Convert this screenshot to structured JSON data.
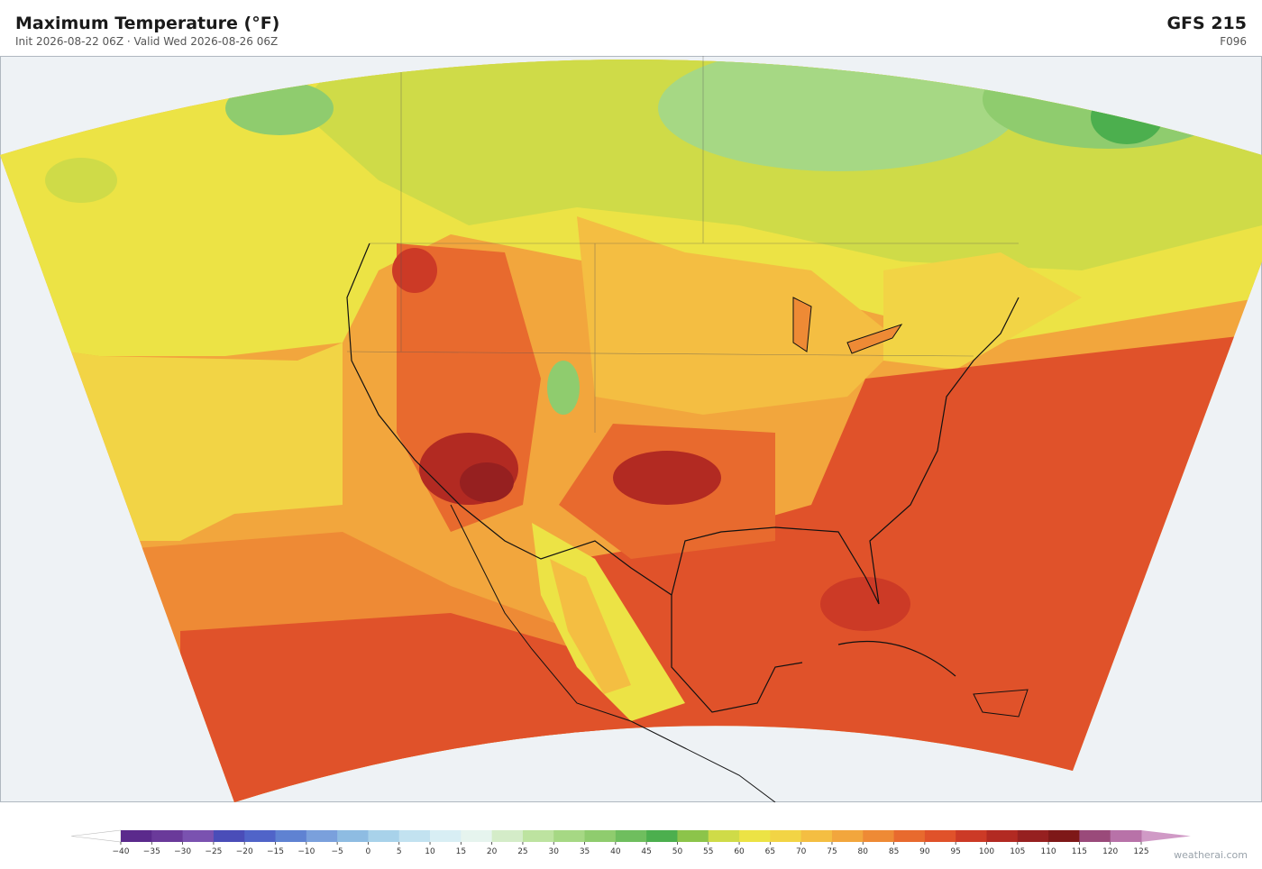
{
  "header": {
    "title": "Maximum Temperature  (°F)",
    "subtitle": "Init 2026-08-22 06Z  ·  Valid Wed 2026-08-26 06Z",
    "model": "GFS  215",
    "forecast_hour": "F096"
  },
  "colorbar": {
    "ticks": [
      {
        "value": -40,
        "label": "−40"
      },
      {
        "value": -35,
        "label": "−35"
      },
      {
        "value": -30,
        "label": "−30"
      },
      {
        "value": -25,
        "label": "−25"
      },
      {
        "value": -20,
        "label": "−20"
      },
      {
        "value": -15,
        "label": "−15"
      },
      {
        "value": -10,
        "label": "−10"
      },
      {
        "value": -5,
        "label": "−5"
      },
      0,
      5,
      10,
      15,
      20,
      25,
      30,
      35,
      40,
      45,
      50,
      55,
      60,
      65,
      70,
      75,
      80,
      85,
      90,
      95,
      100,
      105,
      110,
      115,
      120,
      125
    ],
    "colors": [
      "#5b2a8c",
      "#6a3a9a",
      "#7a52b0",
      "#4a4db8",
      "#5064c8",
      "#5f82d2",
      "#7aa0dc",
      "#8ebce2",
      "#a8d2ea",
      "#c2e2f0",
      "#d8eef4",
      "#e6f4ee",
      "#d4ecc8",
      "#bde3a0",
      "#a6d884",
      "#8fcc6e",
      "#6fbe5e",
      "#4caf4e",
      "#8cc44a",
      "#cfdb48",
      "#ece345",
      "#f2d445",
      "#f4be42",
      "#f2a63d",
      "#ee8a35",
      "#e86a2e",
      "#e0522a",
      "#cc3a26",
      "#b22a22",
      "#962020",
      "#7e1818",
      "#9a4a7a",
      "#b872a8"
    ],
    "under_color": "#ffffff",
    "over_color": "#d09ac6"
  },
  "credit": "weatherai.com"
}
